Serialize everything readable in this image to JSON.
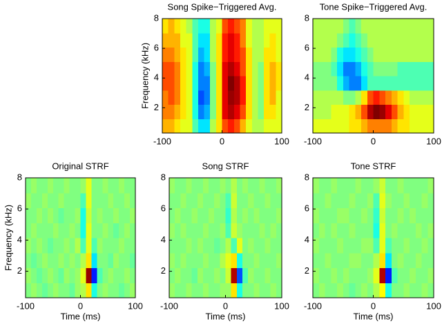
{
  "chart_data": [
    {
      "type": "heatmap",
      "title": "Song Spike−Triggered Avg.",
      "ylabel": "Frequency (kHz)",
      "xlim": [
        -100,
        100
      ],
      "ylim": [
        0.3,
        8
      ],
      "xticks": [
        -100,
        0,
        100
      ],
      "yticks": [
        2,
        4,
        6,
        8
      ],
      "colormap": "jet",
      "zlim": [
        -1,
        1
      ],
      "z": [
        [
          0.4,
          0.4,
          0.3,
          0.2,
          0.2,
          -0.1,
          -0.3,
          -0.3,
          0.1,
          0.3,
          0.6,
          0.7,
          0.6,
          0.4,
          0.2,
          0.1,
          0.1,
          0.2,
          0.2,
          0.2
        ],
        [
          0.5,
          0.5,
          0.4,
          0.3,
          0.2,
          -0.2,
          -0.5,
          -0.4,
          0.0,
          0.3,
          0.8,
          0.9,
          0.8,
          0.6,
          0.3,
          0.1,
          0.0,
          0.3,
          0.3,
          0.2
        ],
        [
          0.5,
          0.6,
          0.5,
          0.3,
          0.2,
          -0.2,
          -0.6,
          -0.5,
          0.0,
          0.3,
          0.8,
          0.95,
          0.9,
          0.7,
          0.3,
          0.1,
          0.0,
          0.3,
          0.4,
          0.2
        ],
        [
          0.6,
          0.6,
          0.5,
          0.3,
          0.2,
          -0.2,
          -0.5,
          -0.5,
          0.0,
          0.3,
          0.8,
          1.0,
          0.9,
          0.7,
          0.3,
          0.1,
          0.0,
          0.3,
          0.4,
          0.3
        ],
        [
          0.6,
          0.6,
          0.5,
          0.3,
          0.2,
          -0.2,
          -0.5,
          -0.4,
          0.0,
          0.3,
          0.8,
          0.9,
          0.8,
          0.6,
          0.3,
          0.1,
          0.0,
          0.3,
          0.4,
          0.3
        ],
        [
          0.5,
          0.5,
          0.4,
          0.3,
          0.2,
          -0.1,
          -0.4,
          -0.3,
          0.1,
          0.3,
          0.7,
          0.8,
          0.7,
          0.6,
          0.3,
          0.1,
          0.1,
          0.3,
          0.3,
          0.2
        ],
        [
          0.4,
          0.4,
          0.4,
          0.2,
          0.2,
          -0.1,
          -0.3,
          -0.3,
          0.1,
          0.3,
          0.7,
          0.8,
          0.7,
          0.5,
          0.2,
          0.1,
          0.1,
          0.2,
          0.3,
          0.2
        ],
        [
          0.3,
          0.4,
          0.3,
          0.2,
          0.1,
          -0.1,
          -0.2,
          -0.2,
          0.1,
          0.2,
          0.6,
          0.7,
          0.6,
          0.5,
          0.2,
          0.1,
          0.1,
          0.2,
          0.2,
          0.2
        ]
      ]
    },
    {
      "type": "heatmap",
      "title": "Tone Spike−Triggered Avg.",
      "xlim": [
        -100,
        100
      ],
      "ylim": [
        0.3,
        8
      ],
      "xticks": [
        -100,
        0,
        100
      ],
      "yticks": [
        2,
        4,
        6,
        8
      ],
      "colormap": "jet",
      "zlim": [
        -1,
        1
      ],
      "z": [
        [
          0.2,
          0.2,
          0.2,
          0.2,
          0.2,
          0.2,
          0.3,
          0.3,
          0.4,
          0.5,
          0.5,
          0.5,
          0.5,
          0.4,
          0.3,
          0.3,
          0.2,
          0.2,
          0.2,
          0.2
        ],
        [
          0.1,
          0.1,
          0.1,
          0.2,
          0.2,
          0.2,
          0.3,
          0.4,
          0.6,
          0.9,
          1.0,
          0.95,
          0.8,
          0.6,
          0.4,
          0.3,
          0.2,
          0.2,
          0.2,
          0.2
        ],
        [
          0.1,
          0.1,
          0.1,
          0.1,
          0.1,
          0.0,
          0.0,
          0.1,
          0.3,
          0.6,
          0.7,
          0.6,
          0.5,
          0.4,
          0.3,
          0.2,
          0.1,
          0.1,
          0.1,
          0.1
        ],
        [
          0.0,
          0.0,
          0.0,
          0.0,
          -0.2,
          -0.4,
          -0.5,
          -0.5,
          -0.3,
          -0.1,
          -0.1,
          -0.1,
          -0.1,
          -0.1,
          -0.1,
          -0.1,
          -0.1,
          -0.1,
          -0.1,
          -0.1
        ],
        [
          0.0,
          0.0,
          0.0,
          -0.1,
          -0.3,
          -0.5,
          -0.5,
          -0.4,
          -0.2,
          -0.1,
          0.0,
          0.0,
          0.0,
          0.0,
          -0.1,
          -0.1,
          -0.1,
          -0.1,
          -0.1,
          -0.1
        ],
        [
          0.1,
          0.1,
          0.1,
          0.0,
          -0.2,
          -0.3,
          -0.3,
          -0.2,
          -0.1,
          0.0,
          0.1,
          0.1,
          0.1,
          0.1,
          0.1,
          0.1,
          0.1,
          0.1,
          0.1,
          0.1
        ],
        [
          0.1,
          0.1,
          0.1,
          0.1,
          0.0,
          -0.1,
          -0.2,
          -0.1,
          0.0,
          0.1,
          0.1,
          0.1,
          0.1,
          0.1,
          0.1,
          0.1,
          0.1,
          0.1,
          0.1,
          0.1
        ],
        [
          0.1,
          0.1,
          0.1,
          0.1,
          0.1,
          0.0,
          -0.1,
          0.0,
          0.1,
          0.1,
          0.1,
          0.1,
          0.1,
          0.1,
          0.1,
          0.1,
          0.1,
          0.1,
          0.1,
          0.1
        ]
      ]
    },
    {
      "type": "heatmap",
      "title": "Original STRF",
      "xlabel": "Time (ms)",
      "ylabel": "Frequency (kHz)",
      "xlim": [
        -100,
        100
      ],
      "ylim": [
        0.3,
        8
      ],
      "xticks": [
        -100,
        0,
        100
      ],
      "yticks": [
        2,
        4,
        6,
        8
      ],
      "colormap": "jet",
      "zlim": [
        -1,
        1
      ],
      "z": [
        [
          0,
          0.05,
          0,
          -0.05,
          0,
          0.05,
          0,
          0,
          -0.05,
          0.05,
          0.1,
          0.3,
          -0.2,
          0,
          0.05,
          0,
          0,
          -0.05,
          0,
          0.05
        ],
        [
          0.05,
          0,
          -0.05,
          0,
          0.05,
          0,
          -0.05,
          0.05,
          0,
          0.05,
          0.2,
          0.95,
          -0.7,
          -0.1,
          0,
          0.05,
          0,
          0,
          0.05,
          0
        ],
        [
          0,
          -0.05,
          0,
          0.05,
          0,
          0,
          0.05,
          0,
          0.05,
          0,
          0.1,
          0.3,
          -0.3,
          0,
          0,
          -0.05,
          0.05,
          0,
          0,
          -0.05
        ],
        [
          0.05,
          0,
          0.05,
          0,
          -0.05,
          0,
          0,
          0.05,
          0,
          0.1,
          -0.1,
          0.2,
          -0.1,
          0.05,
          0,
          0,
          0,
          0.05,
          0,
          0
        ],
        [
          0,
          0.05,
          0,
          0,
          0,
          0.05,
          0,
          0,
          0.05,
          0,
          -0.2,
          0.2,
          0,
          0,
          0.05,
          0,
          -0.05,
          0,
          0.05,
          0
        ],
        [
          0,
          0,
          0.05,
          0,
          0.05,
          0,
          -0.05,
          0,
          0,
          0.05,
          -0.2,
          0.15,
          0,
          0.05,
          0,
          0,
          0.05,
          0,
          0,
          0.05
        ],
        [
          0.05,
          0,
          0,
          0.05,
          0,
          0,
          0.05,
          0,
          0,
          0,
          -0.1,
          0.2,
          0,
          0,
          0,
          0.05,
          0,
          0,
          0.05,
          0
        ],
        [
          0,
          0.05,
          0,
          0,
          0.05,
          0,
          0,
          0.05,
          0,
          0,
          0.05,
          0.2,
          0,
          0,
          0.05,
          0,
          0,
          0.05,
          0,
          0
        ]
      ]
    },
    {
      "type": "heatmap",
      "title": "Song STRF",
      "xlabel": "Time (ms)",
      "xlim": [
        -100,
        100
      ],
      "ylim": [
        0.3,
        8
      ],
      "xticks": [
        -100,
        0,
        100
      ],
      "yticks": [
        2,
        4,
        6,
        8
      ],
      "colormap": "jet",
      "zlim": [
        -1,
        1
      ],
      "z": [
        [
          0.05,
          0,
          0,
          0.05,
          0,
          0,
          0.05,
          0,
          0,
          0.05,
          0.05,
          0.3,
          -0.2,
          0,
          0,
          0.05,
          0,
          0,
          0.05,
          0
        ],
        [
          0,
          0.05,
          0,
          0,
          -0.05,
          0.05,
          0,
          0,
          0.05,
          0,
          0.15,
          0.9,
          -0.6,
          -0.1,
          0.05,
          0,
          0,
          0.05,
          0,
          0
        ],
        [
          0.05,
          0,
          0.05,
          0,
          0,
          0,
          0.05,
          0,
          0,
          0.1,
          0.2,
          0.3,
          -0.2,
          0,
          0,
          0.05,
          0,
          0,
          0,
          0.05
        ],
        [
          0,
          0,
          0,
          0.05,
          0,
          0.05,
          0,
          0,
          -0.05,
          0,
          0.1,
          -0.1,
          0.2,
          0,
          0.05,
          0,
          0,
          0.05,
          0,
          0
        ],
        [
          0.05,
          0,
          0.05,
          0,
          0,
          0,
          0.05,
          0,
          0,
          0.05,
          -0.1,
          0.15,
          0.05,
          0,
          0,
          0,
          0.05,
          0,
          0.05,
          0
        ],
        [
          0,
          0.05,
          0,
          0,
          0.05,
          0,
          0,
          0.05,
          0,
          0,
          -0.15,
          0.1,
          0,
          0.05,
          0,
          0.05,
          0,
          0,
          0,
          0.05
        ],
        [
          0,
          0,
          0.05,
          0,
          0,
          0.05,
          0,
          0,
          0.05,
          0,
          -0.1,
          0.15,
          0,
          0,
          0.05,
          0,
          0,
          0.05,
          0,
          0
        ],
        [
          0.05,
          0,
          0,
          0.05,
          0,
          0,
          0.05,
          0,
          0,
          0.05,
          0,
          0.1,
          0,
          0.05,
          0,
          0,
          0.05,
          0,
          0,
          0.05
        ]
      ]
    },
    {
      "type": "heatmap",
      "title": "Tone STRF",
      "xlabel": "Time (ms)",
      "xlim": [
        -100,
        100
      ],
      "ylim": [
        0.3,
        8
      ],
      "xticks": [
        -100,
        0,
        100
      ],
      "yticks": [
        2,
        4,
        6,
        8
      ],
      "colormap": "jet",
      "zlim": [
        -1,
        1
      ],
      "z": [
        [
          0,
          0.05,
          0,
          0,
          0.05,
          0,
          -0.05,
          0,
          0.05,
          0,
          0.1,
          0.25,
          -0.2,
          0,
          0,
          0.05,
          0,
          0,
          0.05,
          0
        ],
        [
          0.05,
          0,
          0,
          0.05,
          0,
          0.05,
          0,
          0,
          0,
          0.05,
          0.2,
          0.9,
          -0.7,
          -0.1,
          0,
          0,
          0.05,
          0,
          0,
          0.05
        ],
        [
          0,
          0,
          0.05,
          0,
          0,
          0,
          0.05,
          0.05,
          0,
          0,
          0.1,
          0.3,
          -0.3,
          0,
          0.05,
          0,
          0,
          0.05,
          0,
          0
        ],
        [
          0.05,
          0,
          0,
          0,
          0.05,
          0,
          0,
          0,
          0.05,
          0.05,
          -0.1,
          0.2,
          -0.1,
          0,
          0,
          0.05,
          0,
          0,
          0.05,
          0
        ],
        [
          0,
          0.05,
          0,
          0.05,
          0,
          0,
          0.05,
          0,
          0,
          0,
          -0.2,
          0.2,
          0,
          0.05,
          0,
          0,
          0,
          0.05,
          0,
          0.05
        ],
        [
          0.05,
          0,
          0,
          0,
          0.05,
          0.05,
          0,
          0,
          0.05,
          0,
          -0.15,
          0.15,
          0,
          0,
          0.05,
          0,
          0.05,
          0,
          0,
          0
        ],
        [
          0,
          0,
          0.05,
          0,
          0,
          0,
          0.05,
          0,
          0,
          0.05,
          -0.1,
          0.2,
          0.05,
          0,
          0,
          0.05,
          0,
          0,
          0.05,
          0
        ],
        [
          0.05,
          0,
          0,
          0.05,
          0,
          0,
          0,
          0.05,
          0,
          0,
          0.05,
          0.15,
          0,
          0,
          0.05,
          0,
          0,
          0,
          0,
          0.05
        ]
      ]
    }
  ]
}
